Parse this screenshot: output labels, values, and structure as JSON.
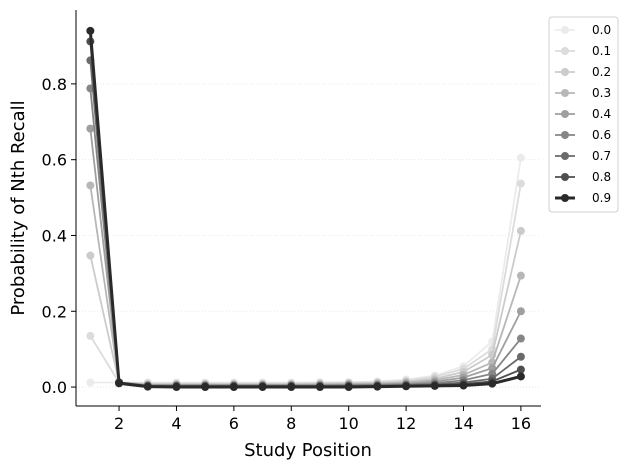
{
  "chart_data": {
    "type": "line",
    "xlabel": "Study Position",
    "ylabel": "Probability of Nth Recall",
    "xlim": [
      0.5,
      16.7
    ],
    "ylim": [
      -0.05,
      0.995
    ],
    "x_ticks": [
      2,
      4,
      6,
      8,
      10,
      12,
      14,
      16
    ],
    "y_ticks": [
      0.0,
      0.2,
      0.4,
      0.6,
      0.8
    ],
    "x_tick_labels": [
      "2",
      "4",
      "6",
      "8",
      "10",
      "12",
      "14",
      "16"
    ],
    "y_tick_labels": [
      "0.0",
      "0.2",
      "0.4",
      "0.6",
      "0.8"
    ],
    "grid": "horizontal-dotted",
    "legend_position": "upper-right-outside",
    "x": [
      1,
      2,
      3,
      4,
      5,
      6,
      7,
      8,
      9,
      10,
      11,
      12,
      13,
      14,
      15,
      16
    ],
    "series": [
      {
        "name": "0.0",
        "color": "#ebebeb",
        "values": [
          0.012,
          0.012,
          0.012,
          0.012,
          0.012,
          0.012,
          0.012,
          0.012,
          0.013,
          0.013,
          0.015,
          0.02,
          0.03,
          0.055,
          0.12,
          0.605
        ]
      },
      {
        "name": "0.1",
        "color": "#dcdcdc",
        "values": [
          0.135,
          0.012,
          0.01,
          0.01,
          0.01,
          0.01,
          0.01,
          0.01,
          0.011,
          0.012,
          0.013,
          0.017,
          0.027,
          0.048,
          0.1,
          0.537
        ]
      },
      {
        "name": "0.2",
        "color": "#cbcbcb",
        "values": [
          0.347,
          0.012,
          0.008,
          0.008,
          0.008,
          0.008,
          0.008,
          0.008,
          0.009,
          0.01,
          0.011,
          0.014,
          0.022,
          0.04,
          0.085,
          0.412
        ]
      },
      {
        "name": "0.3",
        "color": "#b7b7b7",
        "values": [
          0.532,
          0.012,
          0.006,
          0.006,
          0.006,
          0.006,
          0.006,
          0.006,
          0.007,
          0.008,
          0.009,
          0.012,
          0.018,
          0.032,
          0.065,
          0.294
        ]
      },
      {
        "name": "0.4",
        "color": "#9f9f9f",
        "values": [
          0.682,
          0.012,
          0.005,
          0.005,
          0.005,
          0.005,
          0.005,
          0.005,
          0.005,
          0.006,
          0.007,
          0.009,
          0.014,
          0.025,
          0.05,
          0.2
        ]
      },
      {
        "name": "0.6",
        "color": "#868686",
        "values": [
          0.788,
          0.012,
          0.004,
          0.004,
          0.004,
          0.004,
          0.004,
          0.004,
          0.004,
          0.005,
          0.005,
          0.007,
          0.01,
          0.018,
          0.035,
          0.128
        ]
      },
      {
        "name": "0.7",
        "color": "#6a6a6a",
        "values": [
          0.862,
          0.012,
          0.003,
          0.003,
          0.003,
          0.003,
          0.003,
          0.003,
          0.003,
          0.003,
          0.004,
          0.005,
          0.007,
          0.012,
          0.022,
          0.08
        ]
      },
      {
        "name": "0.8",
        "color": "#4e4e4e",
        "values": [
          0.912,
          0.012,
          0.002,
          0.002,
          0.002,
          0.002,
          0.002,
          0.002,
          0.002,
          0.002,
          0.003,
          0.003,
          0.005,
          0.008,
          0.015,
          0.046
        ]
      },
      {
        "name": "0.9",
        "color": "#2a2a2a",
        "values": [
          0.94,
          0.01,
          0.001,
          0.0,
          0.0,
          0.0,
          0.0,
          0.0,
          0.0,
          0.0,
          0.001,
          0.002,
          0.003,
          0.004,
          0.009,
          0.028
        ]
      }
    ]
  }
}
